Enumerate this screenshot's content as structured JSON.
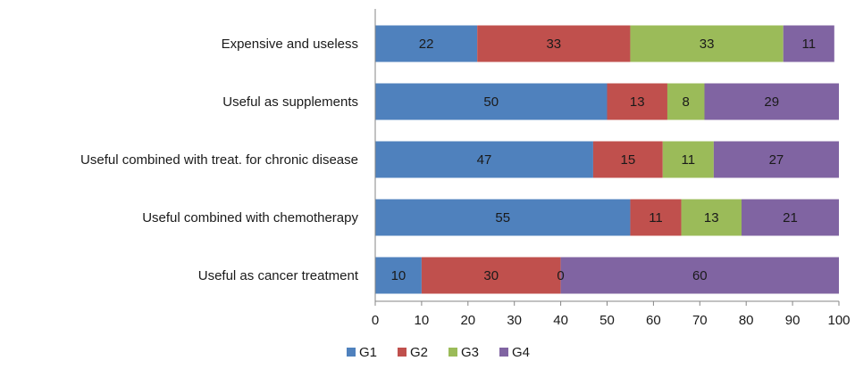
{
  "chart_data": {
    "type": "bar",
    "orientation": "horizontal",
    "stacked": true,
    "title": "",
    "xlabel": "",
    "ylabel": "",
    "xlim": [
      0,
      100
    ],
    "xticks": [
      0,
      10,
      20,
      30,
      40,
      50,
      60,
      70,
      80,
      90,
      100
    ],
    "grid": false,
    "legend_position": "bottom",
    "categories": [
      "Expensive and useless",
      "Useful as supplements",
      "Useful combined with treat. for chronic disease",
      "Useful combined with chemotherapy",
      "Useful as cancer treatment"
    ],
    "series": [
      {
        "name": "G1",
        "color": "#4F81BD",
        "values": [
          22,
          50,
          47,
          55,
          10
        ]
      },
      {
        "name": "G2",
        "color": "#C0504D",
        "values": [
          33,
          13,
          15,
          11,
          30
        ]
      },
      {
        "name": "G3",
        "color": "#9BBB59",
        "values": [
          33,
          8,
          11,
          13,
          0
        ]
      },
      {
        "name": "G4",
        "color": "#8064A2",
        "values": [
          11,
          29,
          27,
          21,
          60
        ]
      }
    ]
  }
}
